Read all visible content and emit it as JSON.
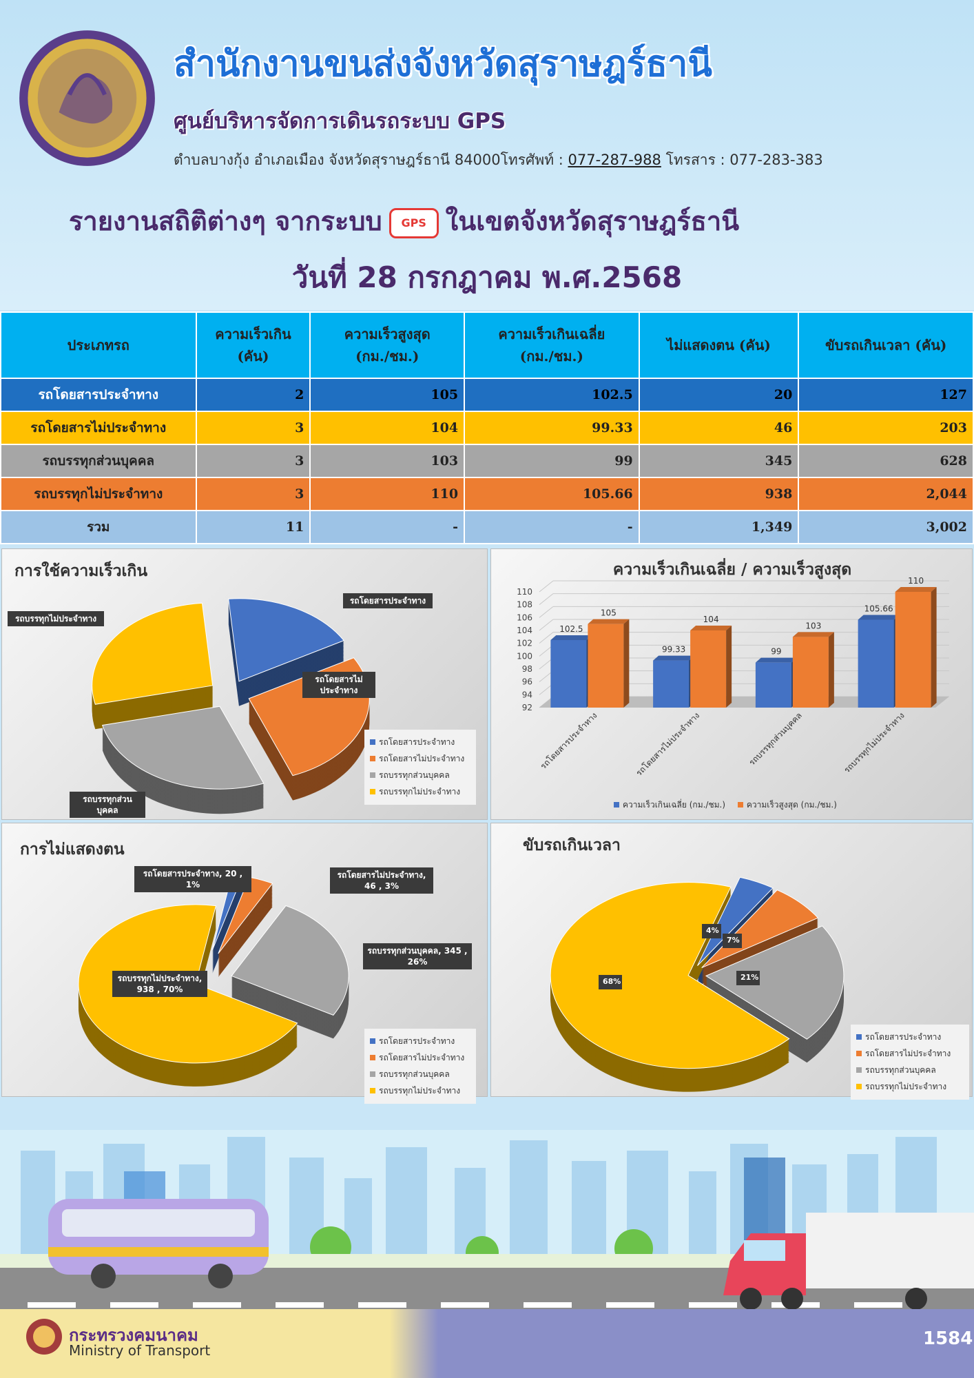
{
  "header": {
    "title": "สำนักงานขนส่งจังหวัดสุราษฎร์ธานี",
    "subtitle": "ศูนย์บริหารจัดการเดินรถระบบ GPS",
    "address_prefix": "ตำบลบางกุ้ง อำเภอเมือง จังหวัดสุราษฎร์ธานี 84000โทรศัพท์ : ",
    "phone": "077-287-988",
    "fax": " โทรสาร : 077-283-383",
    "report_left": "รายงานสถิติต่างๆ จากระบบ",
    "gps_badge": "GPS",
    "report_right": "ในเขตจังหวัดสุราษฎร์ธานี",
    "date": "วันที่ 28 กรกฎาคม พ.ศ.2568"
  },
  "table": {
    "headers": [
      "ประเภทรถ",
      "ความเร็วเกิน\n(คัน)",
      "ความเร็วสูงสุด\n(กม./ชม.)",
      "ความเร็วเกินเฉลี่ย\n(กม./ชม.)",
      "ไม่แสดงตน (คัน)",
      "ขับรถเกินเวลา (คัน)"
    ],
    "rows": [
      [
        "รถโดยสารประจำทาง",
        "2",
        "105",
        "102.5",
        "20",
        "127"
      ],
      [
        "รถโดยสารไม่ประจำทาง",
        "3",
        "104",
        "99.33",
        "46",
        "203"
      ],
      [
        "รถบรรทุกส่วนบุคคล",
        "3",
        "103",
        "99",
        "345",
        "628"
      ],
      [
        "รถบรรทุกไม่ประจำทาง",
        "3",
        "110",
        "105.66",
        "938",
        "2,044"
      ],
      [
        "รวม",
        "11",
        "-",
        "-",
        "1,349",
        "3,002"
      ]
    ]
  },
  "colors": {
    "blue": "#4472c4",
    "orange": "#ed7d31",
    "gray": "#a5a5a5",
    "yellow": "#ffc000"
  },
  "categories": [
    "รถโดยสารประจำทาง",
    "รถโดยสารไม่ประจำทาง",
    "รถบรรทุกส่วนบุคคล",
    "รถบรรทุกไม่ประจำทาง"
  ],
  "chart_data": [
    {
      "type": "pie",
      "title": "การใช้ความเร็วเกิน",
      "labels": [
        "รถโดยสารประจำทาง",
        "รถโดยสารไม่ประจำทาง",
        "รถบรรทุกส่วนบุคคล",
        "รถบรรทุกไม่ประจำทาง"
      ],
      "values": [
        2,
        3,
        3,
        3
      ],
      "callouts": [
        "รถโดยสารประจำทาง",
        "รถโดยสารไม่ประจำทาง",
        "รถบรรทุกส่วนบุคคล",
        "รถบรรทุกไม่ประจำทาง"
      ],
      "legend": "right-bottom"
    },
    {
      "type": "bar",
      "title": "ความเร็วเกินเฉลี่ย / ความเร็วสูงสุด",
      "categories": [
        "รถโดยสารประจำทาง",
        "รถโดยสารไม่ประจำทาง",
        "รถบรรทุกส่วนบุคคล",
        "รถบรรทุกไม่ประจำทาง"
      ],
      "series": [
        {
          "name": "ความเร็วเกินเฉลี่ย (กม./ชม.)",
          "values": [
            102.5,
            99.33,
            99,
            105.66
          ],
          "labels": [
            "102.5",
            "99.33",
            "99",
            "105.66"
          ]
        },
        {
          "name": "ความเร็วสูงสุด (กม./ชม.)",
          "values": [
            105,
            104,
            103,
            110
          ],
          "labels": [
            "105",
            "104",
            "103",
            "110"
          ]
        }
      ],
      "ylim": [
        92,
        110
      ],
      "yticks": [
        "92",
        "94",
        "96",
        "98",
        "100",
        "102",
        "104",
        "106",
        "108",
        "110"
      ],
      "legend": "bottom"
    },
    {
      "type": "pie",
      "title": "การไม่แสดงตน",
      "labels": [
        "รถโดยสารประจำทาง",
        "รถโดยสารไม่ประจำทาง",
        "รถบรรทุกส่วนบุคคล",
        "รถบรรทุกไม่ประจำทาง"
      ],
      "values": [
        20,
        46,
        345,
        938
      ],
      "callouts": [
        "รถโดยสารประจำทาง, 20 , 1%",
        "รถโดยสารไม่ประจำทาง, 46 , 3%",
        "รถบรรทุกส่วนบุคคล, 345 , 26%",
        "รถบรรทุกไม่ประจำทาง, 938 , 70%"
      ],
      "legend": "right-bottom"
    },
    {
      "type": "pie",
      "title": "ขับรถเกินเวลา",
      "labels": [
        "รถโดยสารประจำทาง",
        "รถโดยสารไม่ประจำทาง",
        "รถบรรทุกส่วนบุคคล",
        "รถบรรทุกไม่ประจำทาง"
      ],
      "values": [
        127,
        203,
        628,
        2044
      ],
      "callouts": [
        "4%",
        "7%",
        "21%",
        "68%"
      ],
      "legend": "right-bottom"
    }
  ],
  "footer": {
    "ministry_th": "กระทรวงคมนาคม",
    "ministry_en": "Ministry of Transport",
    "call_center": "1584"
  }
}
